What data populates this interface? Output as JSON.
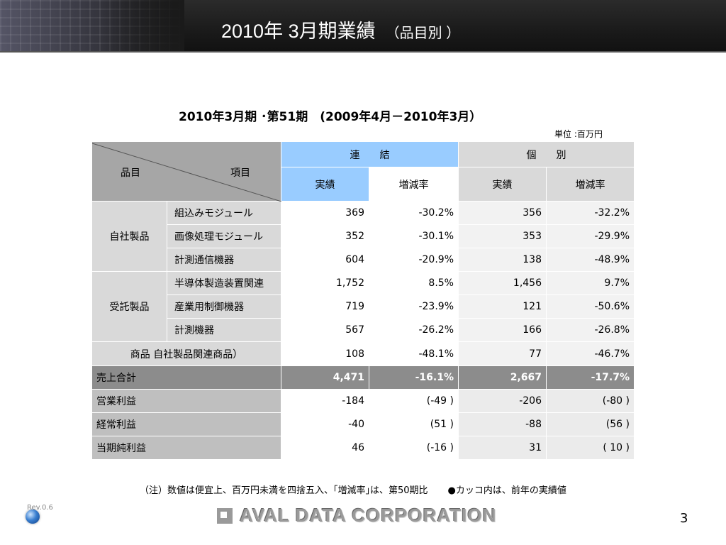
{
  "header": {
    "title": "2010年 3月期業績",
    "subtitle": "（品目別 ）"
  },
  "period": "2010年3月期 ･第51期　(2009年4月－2010年3月）",
  "unit": "単位 :百万円",
  "table": {
    "corner_left": "品目",
    "corner_right": "項目",
    "groups": {
      "consolidated": "連　　結",
      "standalone": "個　　別"
    },
    "subheads": {
      "actual": "実績",
      "change": "増減率"
    },
    "categories": {
      "own": "自社製品",
      "contract": "受託製品"
    },
    "rows": [
      {
        "item": "組込みモジュール",
        "c_actual": "369",
        "c_change": "-30.2%",
        "s_actual": "356",
        "s_change": "-32.2%"
      },
      {
        "item": "画像処理モジュール",
        "c_actual": "352",
        "c_change": "-30.1%",
        "s_actual": "353",
        "s_change": "-29.9%"
      },
      {
        "item": "計測通信機器",
        "c_actual": "604",
        "c_change": "-20.9%",
        "s_actual": "138",
        "s_change": "-48.9%"
      },
      {
        "item": "半導体製造装置関連",
        "c_actual": "1,752",
        "c_change": "8.5%",
        "s_actual": "1,456",
        "s_change": "9.7%"
      },
      {
        "item": "産業用制御機器",
        "c_actual": "719",
        "c_change": "-23.9%",
        "s_actual": "121",
        "s_change": "-50.6%"
      },
      {
        "item": "計測機器",
        "c_actual": "567",
        "c_change": "-26.2%",
        "s_actual": "166",
        "s_change": "-26.8%"
      }
    ],
    "merch": {
      "label": "商品  自社製品関連商品）",
      "c_actual": "108",
      "c_change": "-48.1%",
      "s_actual": "77",
      "s_change": "-46.7%"
    },
    "sales": {
      "label": "売上合計",
      "c_actual": "4,471",
      "c_change": "-16.1%",
      "s_actual": "2,667",
      "s_change": "-17.7%"
    },
    "profits": [
      {
        "label": "営業利益",
        "c_actual": "-184",
        "c_change": "(-49 )",
        "s_actual": "-206",
        "s_change": "(-80 )"
      },
      {
        "label": "経常利益",
        "c_actual": "-40",
        "c_change": "(51 )",
        "s_actual": "-88",
        "s_change": "(56 )"
      },
      {
        "label": "当期純利益",
        "c_actual": "46",
        "c_change": "(-16 )",
        "s_actual": "31",
        "s_change": "( 10 )"
      }
    ]
  },
  "note": "（注）数値は便宜上、百万円未満を四捨五入、｢増減率｣は、第50期比",
  "note2": "●カッコ内は、前年の実績値",
  "footer": {
    "rev": "Rev.0.6",
    "logo": "AVAL DATA CORPORATION",
    "page": "3"
  }
}
